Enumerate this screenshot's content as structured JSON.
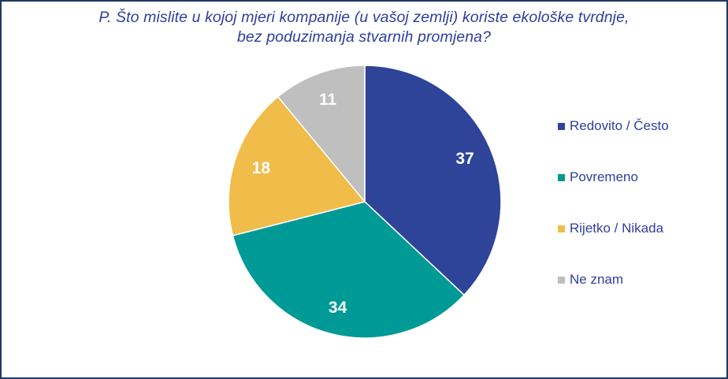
{
  "title": {
    "line1": "P. Što mislite u kojoj mjeri kompanije (u vašoj zemlji) koriste ekološke tvrdnje,",
    "line2": "bez poduzimanja stvarnih promjena?"
  },
  "chart_data": {
    "type": "pie",
    "title": "P. Što mislite u kojoj mjeri kompanije (u vašoj zemlji) koriste ekološke tvrdnje, bez poduzimanja stvarnih promjena?",
    "categories": [
      "Redovito / Često",
      "Povremeno",
      "Rijetko / Nikada",
      "Ne znam"
    ],
    "values": [
      37,
      34,
      18,
      11
    ],
    "colors": [
      "#2e4499",
      "#009a96",
      "#f0bc4a",
      "#bfbfbf"
    ],
    "legend_position": "right",
    "start_angle": "12 o'clock",
    "direction": "clockwise"
  },
  "legend": {
    "items": [
      {
        "label": "Redovito / Često",
        "color": "#2e4499"
      },
      {
        "label": "Povremeno",
        "color": "#009a96"
      },
      {
        "label": "Rijetko / Nikada",
        "color": "#f0bc4a"
      },
      {
        "label": "Ne znam",
        "color": "#bfbfbf"
      }
    ]
  }
}
